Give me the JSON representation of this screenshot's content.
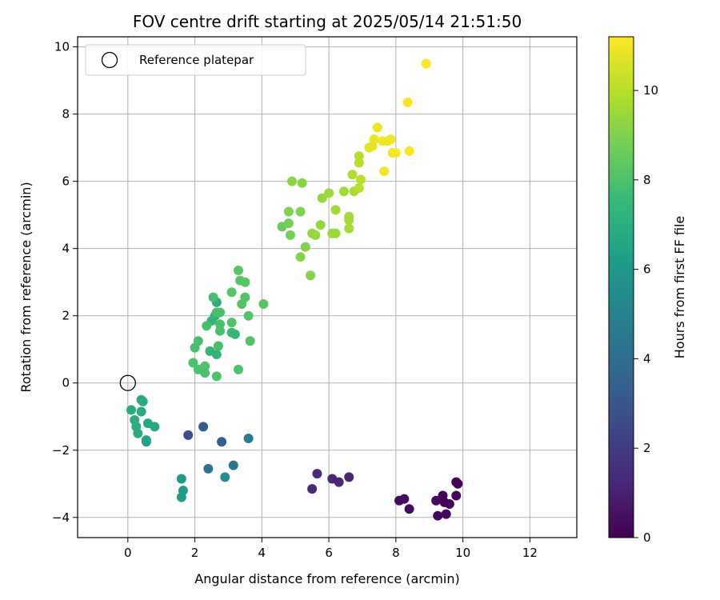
{
  "chart_data": {
    "type": "scatter",
    "title": "FOV centre drift starting at 2025/05/14 21:51:50",
    "xlabel": "Angular distance from reference (arcmin)",
    "ylabel": "Rotation from reference (arcmin)",
    "xlim": [
      -1.5,
      13.4
    ],
    "ylim": [
      -4.6,
      10.3
    ],
    "xticks": [
      0,
      2,
      4,
      6,
      8,
      10,
      12
    ],
    "yticks": [
      -4,
      -2,
      0,
      2,
      4,
      6,
      8,
      10
    ],
    "grid": true,
    "legend": {
      "placement": "top-left",
      "entries": [
        "Reference platepar"
      ]
    },
    "reference_point": {
      "x": 0,
      "y": 0
    },
    "colorbar": {
      "label": "Hours from first FF file",
      "colormap": "viridis",
      "range": [
        0,
        11.2
      ],
      "ticks": [
        0,
        2,
        4,
        6,
        8,
        10
      ]
    },
    "points": [
      [
        9.8,
        -2.95,
        0.1
      ],
      [
        9.85,
        -3.0,
        0.1
      ],
      [
        9.8,
        -3.35,
        0.1
      ],
      [
        9.6,
        -3.6,
        0.1
      ],
      [
        9.4,
        -3.35,
        0.1
      ],
      [
        9.45,
        -3.55,
        0.1
      ],
      [
        9.5,
        -3.9,
        0.2
      ],
      [
        9.25,
        -3.95,
        0.2
      ],
      [
        9.2,
        -3.5,
        0.2
      ],
      [
        8.4,
        -3.75,
        0.3
      ],
      [
        8.25,
        -3.45,
        0.3
      ],
      [
        8.1,
        -3.5,
        0.3
      ],
      [
        6.6,
        -2.8,
        1.2
      ],
      [
        6.3,
        -2.95,
        1.2
      ],
      [
        6.1,
        -2.85,
        1.2
      ],
      [
        5.65,
        -2.7,
        1.3
      ],
      [
        5.5,
        -3.15,
        1.3
      ],
      [
        1.8,
        -1.55,
        2.6
      ],
      [
        2.25,
        -1.3,
        3.2
      ],
      [
        2.8,
        -1.75,
        3.4
      ],
      [
        2.4,
        -2.55,
        4.2
      ],
      [
        3.15,
        -2.45,
        4.4
      ],
      [
        3.6,
        -1.65,
        4.6
      ],
      [
        2.9,
        -2.8,
        5.5
      ],
      [
        1.6,
        -2.85,
        6.1
      ],
      [
        1.65,
        -3.2,
        6.1
      ],
      [
        1.6,
        -3.4,
        6.2
      ],
      [
        0.55,
        -1.7,
        6.4
      ],
      [
        0.55,
        -1.75,
        6.4
      ],
      [
        0.6,
        -1.2,
        6.7
      ],
      [
        0.8,
        -1.3,
        6.7
      ],
      [
        0.4,
        -0.5,
        6.8
      ],
      [
        0.45,
        -0.55,
        6.8
      ],
      [
        0.4,
        -0.85,
        6.8
      ],
      [
        0.1,
        -0.8,
        6.8
      ],
      [
        0.2,
        -1.1,
        6.9
      ],
      [
        0.25,
        -1.3,
        6.9
      ],
      [
        0.3,
        -1.5,
        6.9
      ],
      [
        2.65,
        2.4,
        7.0
      ],
      [
        2.6,
        2.0,
        7.2
      ],
      [
        2.5,
        1.85,
        7.3
      ],
      [
        2.65,
        0.85,
        7.3
      ],
      [
        2.45,
        0.95,
        7.3
      ],
      [
        3.2,
        1.45,
        7.4
      ],
      [
        3.1,
        1.5,
        7.5
      ],
      [
        2.55,
        2.55,
        7.8
      ],
      [
        2.65,
        2.1,
        7.9
      ],
      [
        2.75,
        2.1,
        7.9
      ],
      [
        2.75,
        1.75,
        7.9
      ],
      [
        2.75,
        1.55,
        7.9
      ],
      [
        2.35,
        1.7,
        7.9
      ],
      [
        2.7,
        1.1,
        7.9
      ],
      [
        2.1,
        1.25,
        7.9
      ],
      [
        2.0,
        1.05,
        7.9
      ],
      [
        1.95,
        0.6,
        8.0
      ],
      [
        2.1,
        0.4,
        8.0
      ],
      [
        2.3,
        0.5,
        8.0
      ],
      [
        2.3,
        0.3,
        8.0
      ],
      [
        2.65,
        0.2,
        8.0
      ],
      [
        3.3,
        0.4,
        8.0
      ],
      [
        3.1,
        1.8,
        8.1
      ],
      [
        3.6,
        2.0,
        8.1
      ],
      [
        3.65,
        1.25,
        8.1
      ],
      [
        3.5,
        2.55,
        8.1
      ],
      [
        3.4,
        2.35,
        8.1
      ],
      [
        3.1,
        2.7,
        8.2
      ],
      [
        3.3,
        3.35,
        8.2
      ],
      [
        3.35,
        3.05,
        8.2
      ],
      [
        3.5,
        3.0,
        8.2
      ],
      [
        4.05,
        2.35,
        8.2
      ],
      [
        4.6,
        4.65,
        8.6
      ],
      [
        4.8,
        4.75,
        8.8
      ],
      [
        4.85,
        4.4,
        8.8
      ],
      [
        4.8,
        5.1,
        9.0
      ],
      [
        5.15,
        5.1,
        9.0
      ],
      [
        5.15,
        3.75,
        9.1
      ],
      [
        5.3,
        4.05,
        9.1
      ],
      [
        5.45,
        3.2,
        9.1
      ],
      [
        4.9,
        6.0,
        9.2
      ],
      [
        5.2,
        5.95,
        9.2
      ],
      [
        5.5,
        4.45,
        9.4
      ],
      [
        5.6,
        4.4,
        9.4
      ],
      [
        5.75,
        4.7,
        9.4
      ],
      [
        5.8,
        5.5,
        9.4
      ],
      [
        6.0,
        5.65,
        9.5
      ],
      [
        6.1,
        4.45,
        9.5
      ],
      [
        6.2,
        4.45,
        9.5
      ],
      [
        6.2,
        5.15,
        9.6
      ],
      [
        6.45,
        5.7,
        9.6
      ],
      [
        6.6,
        4.95,
        9.6
      ],
      [
        6.6,
        4.85,
        9.6
      ],
      [
        6.6,
        4.6,
        9.7
      ],
      [
        6.75,
        5.7,
        9.8
      ],
      [
        6.7,
        6.2,
        9.9
      ],
      [
        6.9,
        5.8,
        10.0
      ],
      [
        6.95,
        6.05,
        10.0
      ],
      [
        6.9,
        6.75,
        10.0
      ],
      [
        6.9,
        6.55,
        10.0
      ],
      [
        7.2,
        7.0,
        10.8
      ],
      [
        7.3,
        7.05,
        10.8
      ],
      [
        7.35,
        7.25,
        10.9
      ],
      [
        7.45,
        7.6,
        10.9
      ],
      [
        7.6,
        7.2,
        11.0
      ],
      [
        7.65,
        6.3,
        11.0
      ],
      [
        7.75,
        7.2,
        11.0
      ],
      [
        7.85,
        7.25,
        11.0
      ],
      [
        7.9,
        6.85,
        11.0
      ],
      [
        8.0,
        6.85,
        11.1
      ],
      [
        8.35,
        8.35,
        11.1
      ],
      [
        8.4,
        6.9,
        11.1
      ],
      [
        8.9,
        9.5,
        11.2
      ]
    ]
  }
}
